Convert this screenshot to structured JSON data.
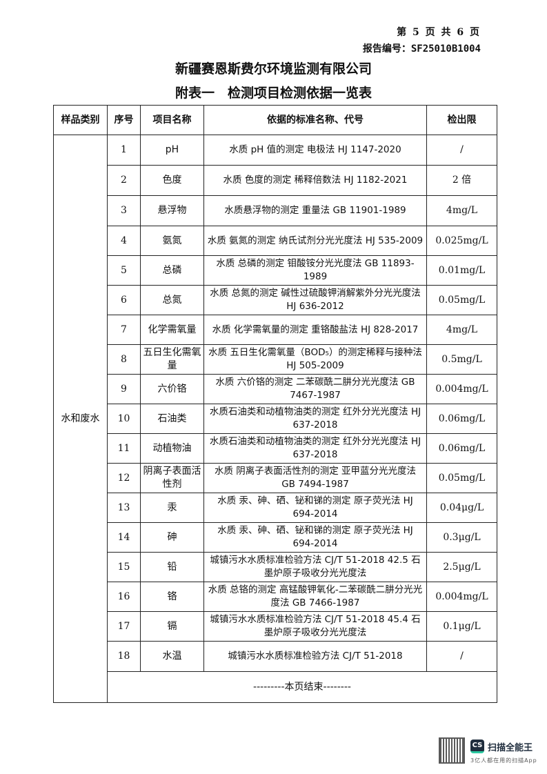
{
  "header": {
    "page_info": "第 5 页 共 6 页",
    "report_no": "报告编号：SF25010B1004",
    "company": "新疆赛恩斯费尔环境监测有限公司",
    "title": "附表一　检测项目检测依据一览表"
  },
  "table": {
    "columns": [
      "样品类别",
      "序号",
      "项目名称",
      "依据的标准名称、代号",
      "检出限"
    ],
    "category": "水和废水",
    "rows": [
      {
        "no": "1",
        "item": "pH",
        "method": "水质 pH 值的测定 电极法 HJ 1147-2020",
        "limit": "/"
      },
      {
        "no": "2",
        "item": "色度",
        "method": "水质 色度的测定 稀释倍数法 HJ 1182-2021",
        "limit": "2 倍"
      },
      {
        "no": "3",
        "item": "悬浮物",
        "method": "水质悬浮物的测定 重量法 GB 11901-1989",
        "limit": "4mg/L"
      },
      {
        "no": "4",
        "item": "氨氮",
        "method": "水质 氨氮的测定 纳氏试剂分光光度法 HJ 535-2009",
        "limit": "0.025mg/L"
      },
      {
        "no": "5",
        "item": "总磷",
        "method": "水质 总磷的测定 钼酸铵分光光度法 GB 11893-1989",
        "limit": "0.01mg/L"
      },
      {
        "no": "6",
        "item": "总氮",
        "method": "水质 总氮的测定 碱性过硫酸钾消解紫外分光光度法 HJ 636-2012",
        "limit": "0.05mg/L"
      },
      {
        "no": "7",
        "item": "化学需氧量",
        "method": "水质 化学需氧量的测定 重铬酸盐法 HJ 828-2017",
        "limit": "4mg/L"
      },
      {
        "no": "8",
        "item": "五日生化需氧量",
        "method": "水质 五日生化需氧量（BOD₅）的测定稀释与接种法 HJ 505-2009",
        "limit": "0.5mg/L"
      },
      {
        "no": "9",
        "item": "六价铬",
        "method": "水质 六价铬的测定 二苯碳酰二肼分光光度法 GB 7467-1987",
        "limit": "0.004mg/L"
      },
      {
        "no": "10",
        "item": "石油类",
        "method": "水质石油类和动植物油类的测定 红外分光光度法 HJ 637-2018",
        "limit": "0.06mg/L"
      },
      {
        "no": "11",
        "item": "动植物油",
        "method": "水质石油类和动植物油类的测定 红外分光光度法 HJ 637-2018",
        "limit": "0.06mg/L"
      },
      {
        "no": "12",
        "item": "阴离子表面活性剂",
        "method": "水质 阴离子表面活性剂的测定 亚甲蓝分光光度法 GB 7494-1987",
        "limit": "0.05mg/L"
      },
      {
        "no": "13",
        "item": "汞",
        "method": "水质 汞、砷、硒、铋和锑的测定 原子荧光法 HJ 694-2014",
        "limit": "0.04μg/L"
      },
      {
        "no": "14",
        "item": "砷",
        "method": "水质 汞、砷、硒、铋和锑的测定 原子荧光法 HJ 694-2014",
        "limit": "0.3μg/L"
      },
      {
        "no": "15",
        "item": "铅",
        "method": "城镇污水水质标准检验方法 CJ/T 51-2018 42.5 石墨炉原子吸收分光光度法",
        "limit": "2.5μg/L"
      },
      {
        "no": "16",
        "item": "铬",
        "method": "水质 总铬的测定 高锰酸钾氧化-二苯碳酰二肼分光光度法 GB 7466-1987",
        "limit": "0.004mg/L"
      },
      {
        "no": "17",
        "item": "镉",
        "method": "城镇污水水质标准检验方法 CJ/T 51-2018 45.4 石墨炉原子吸收分光光度法",
        "limit": "0.1μg/L"
      },
      {
        "no": "18",
        "item": "水温",
        "method": "城镇污水水质标准检验方法 CJ/T 51-2018",
        "limit": "/"
      }
    ],
    "end_note": "---------本页结束--------"
  },
  "watermark": {
    "logo_text": "CS",
    "app_name": "扫描全能王",
    "tagline": "3亿人都在用的扫描App",
    "brand_color": "#1f2d3d",
    "accent_color": "#2bc8a0"
  }
}
